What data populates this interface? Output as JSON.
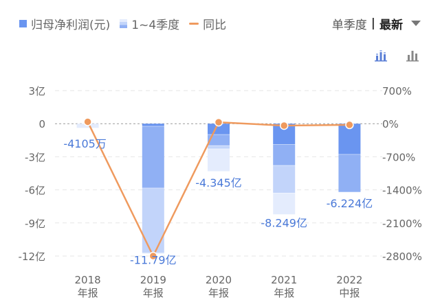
{
  "legend": {
    "profit_label": "归母净利润(元)",
    "quarters_label": "1~4季度",
    "yoy_label": "同比"
  },
  "controls": {
    "period_label": "单季度",
    "separator": "|",
    "selected_label": "最新"
  },
  "colors": {
    "q1": "#6a95f0",
    "q2": "#90b0f4",
    "q3": "#c2d4fa",
    "q4": "#e4ecfd",
    "yoy_line": "#ef9a5e",
    "value_label": "#4a79d8"
  },
  "chart_data": {
    "type": "bar",
    "categories": [
      "2018年报",
      "2019年报",
      "2020年报",
      "2021年报",
      "2022中报"
    ],
    "category_lines": [
      [
        "2018",
        "年报"
      ],
      [
        "2019",
        "年报"
      ],
      [
        "2020",
        "年报"
      ],
      [
        "2021",
        "年报"
      ],
      [
        "2022",
        "中报"
      ]
    ],
    "series": [
      {
        "name": "1~4季度",
        "stack_quarters": [
          [
            0,
            0,
            0,
            -0.41
          ],
          [
            -0.25,
            -5.6,
            -5.9,
            -0.04
          ],
          [
            -1.0,
            -1.0,
            -0.3,
            -2.045
          ],
          [
            -1.9,
            -1.9,
            -2.5,
            -1.949
          ],
          [
            -2.8,
            -3.424
          ]
        ]
      }
    ],
    "totals": [
      -0.4105,
      -11.79,
      -4.345,
      -8.249,
      -6.224
    ],
    "value_labels": [
      "-4105万",
      "-11.79亿",
      "-4.345亿",
      "-8.249亿",
      "-6.224亿"
    ],
    "yoy": [
      {
        "name": "同比",
        "values": [
          40,
          -2800,
          30,
          -40,
          -25
        ]
      }
    ],
    "y_left": {
      "ticks": [
        3,
        0,
        -3,
        -6,
        -9,
        -12
      ],
      "tick_labels": [
        "3亿",
        "0",
        "-3亿",
        "-6亿",
        "-9亿",
        "-12亿"
      ],
      "range": [
        -12,
        3
      ]
    },
    "y_right": {
      "ticks": [
        700,
        0,
        -700,
        -1400,
        -2100,
        -2800
      ],
      "tick_labels": [
        "700%",
        "0%",
        "-700%",
        "-1400%",
        "-2100%",
        "-2800%"
      ],
      "range": [
        -2800,
        700
      ]
    },
    "grid": true,
    "legend_position": "top-left"
  }
}
